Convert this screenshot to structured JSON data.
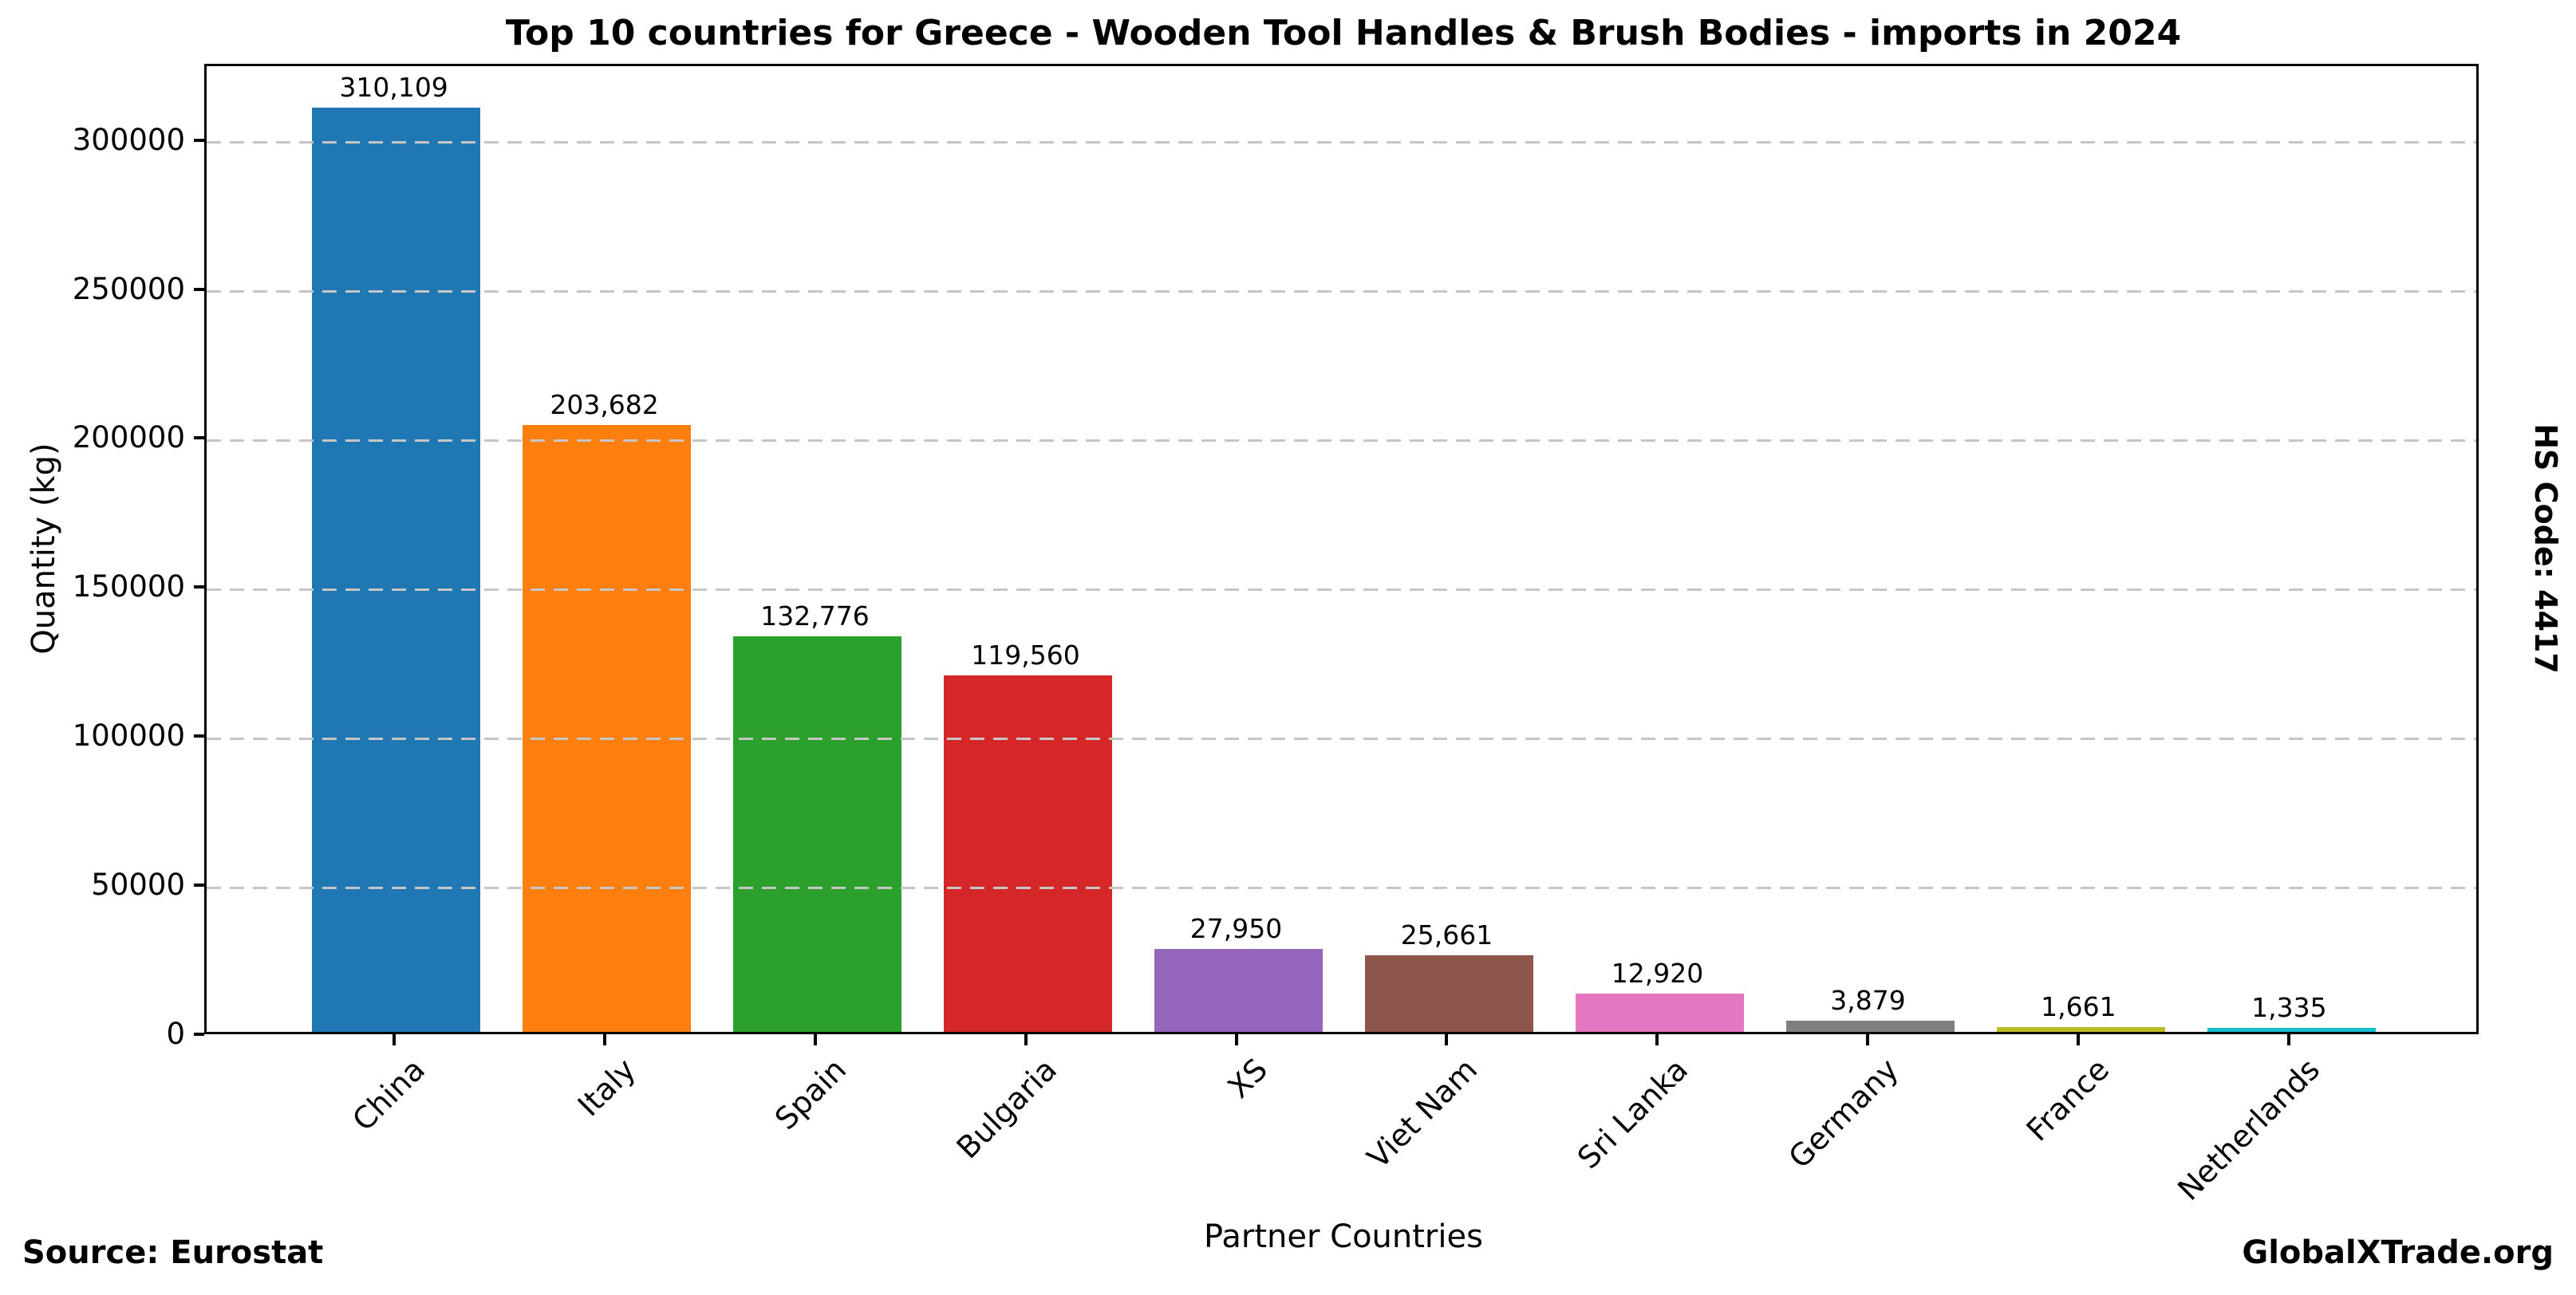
{
  "title": "Top 10 countries for Greece - Wooden Tool Handles & Brush Bodies - imports in 2024",
  "footer": {
    "source": "Source: Eurostat",
    "brand": "GlobalXTrade.org"
  },
  "side_label": "HS Code: 4417",
  "chart_data": {
    "type": "bar",
    "title": "Top 10 countries for Greece - Wooden Tool Handles & Brush Bodies - imports in 2024",
    "xlabel": "Partner Countries",
    "ylabel": "Quantity (kg)",
    "categories": [
      "China",
      "Italy",
      "Spain",
      "Bulgaria",
      "XS",
      "Viet Nam",
      "Sri Lanka",
      "Germany",
      "France",
      "Netherlands"
    ],
    "values": [
      310109,
      203682,
      132776,
      119560,
      27950,
      25661,
      12920,
      3879,
      1661,
      1335
    ],
    "value_labels": [
      "310,109",
      "203,682",
      "132,776",
      "119,560",
      "27,950",
      "25,661",
      "12,920",
      "3,879",
      "1,661",
      "1,335"
    ],
    "bar_colors": [
      "#1f77b4",
      "#ff7f0e",
      "#2ca02c",
      "#d62728",
      "#9467bd",
      "#8c564b",
      "#e377c2",
      "#7f7f7f",
      "#bcbd22",
      "#17becf"
    ],
    "ylim": [
      0,
      325614
    ],
    "yticks": [
      0,
      50000,
      100000,
      150000,
      200000,
      250000,
      300000
    ],
    "ytick_labels": [
      "0",
      "50000",
      "100000",
      "150000",
      "200000",
      "250000",
      "300000"
    ],
    "grid": "horizontal dashed, drawn above bars",
    "legend": "none"
  }
}
